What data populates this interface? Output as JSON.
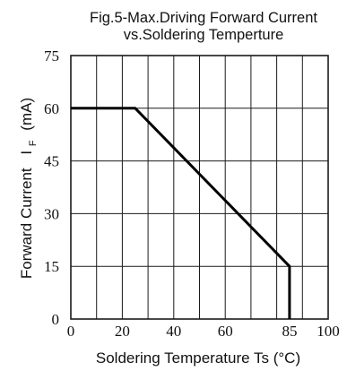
{
  "chart_data": {
    "type": "line",
    "title_line1": "Fig.5-Max.Driving Forward Current",
    "title_line2": "vs.Soldering Temperture",
    "ylabel": "Forward Current",
    "ylabel_symbol": "I",
    "ylabel_subscript": "F",
    "ylabel_unit": "(mA)",
    "xlabel": "Soldering Temperature Ts (°C)",
    "xlim": [
      0,
      100
    ],
    "ylim": [
      0,
      75
    ],
    "x_ticks": [
      {
        "value": 0,
        "label": "0"
      },
      {
        "value": 20,
        "label": "20"
      },
      {
        "value": 40,
        "label": "40"
      },
      {
        "value": 60,
        "label": "60"
      },
      {
        "value": 85,
        "label": "85"
      },
      {
        "value": 100,
        "label": "100"
      }
    ],
    "y_ticks": [
      {
        "value": 0,
        "label": "0"
      },
      {
        "value": 15,
        "label": "15"
      },
      {
        "value": 30,
        "label": "30"
      },
      {
        "value": 45,
        "label": "45"
      },
      {
        "value": 60,
        "label": "60"
      },
      {
        "value": 75,
        "label": "75"
      }
    ],
    "grid": true,
    "x_grid_step": 10,
    "y_grid_step": 15,
    "series": [
      {
        "x": [
          0,
          25,
          85,
          85
        ],
        "y": [
          60,
          60,
          15,
          0
        ]
      }
    ]
  }
}
